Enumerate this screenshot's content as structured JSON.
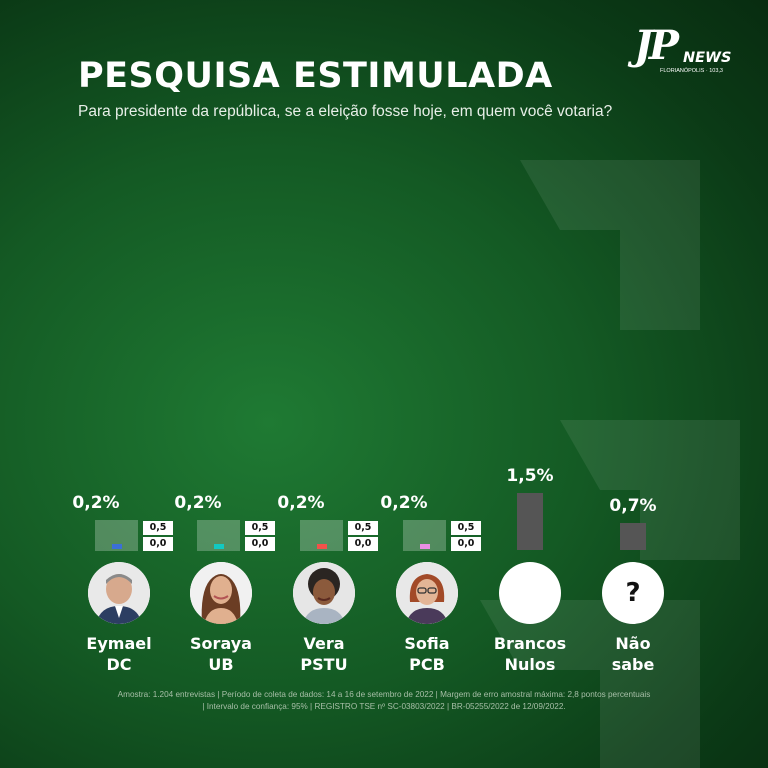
{
  "title": "PESQUISA ESTIMULADA",
  "subtitle": "Para presidente da república, se a eleição fosse hoje, em quem você votaria?",
  "logo": {
    "mark": "JP",
    "word": "NEWS",
    "city": "FLORIANÓPOLIS · 103,3"
  },
  "chart_data": {
    "type": "bar",
    "title": "PESQUISA ESTIMULADA",
    "categories": [
      "Eymael DC",
      "Soraya UB",
      "Vera PSTU",
      "Sofia PCB",
      "Brancos Nulos",
      "Não sabe"
    ],
    "values": [
      0.2,
      0.2,
      0.2,
      0.2,
      1.5,
      0.7
    ],
    "unit": "%",
    "value_labels": [
      "0,2%",
      "0,2%",
      "0,2%",
      "0,2%",
      "1,5%",
      "0,7%"
    ],
    "ranges": [
      {
        "max": "0,5",
        "min": "0,0"
      },
      {
        "max": "0,5",
        "min": "0,0"
      },
      {
        "max": "0,5",
        "min": "0,0"
      },
      {
        "max": "0,5",
        "min": "0,0"
      },
      null,
      null
    ],
    "colors": [
      "#3b6fd8",
      "#12c9c1",
      "#f2514a",
      "#e98fe6",
      "#555555",
      "#555555"
    ]
  },
  "candidates": [
    {
      "line1": "Eymael",
      "line2": "DC",
      "photo": "photo-eymael"
    },
    {
      "line1": "Soraya",
      "line2": "UB",
      "photo": "photo-soraya"
    },
    {
      "line1": "Vera",
      "line2": "PSTU",
      "photo": "photo-vera"
    },
    {
      "line1": "Sofia",
      "line2": "PCB",
      "photo": "photo-sofia"
    },
    {
      "line1": "Brancos",
      "line2": "Nulos",
      "photo": "blank-circle"
    },
    {
      "line1": "Não",
      "line2": "sabe",
      "photo": "question-icon",
      "symbol": "?"
    }
  ],
  "footer": {
    "line1": "Amostra: 1.204 entrevistas | Período de coleta de dados: 14 a 16 de setembro de 2022 | Margem de erro amostral máxima: 2,8 pontos percentuais",
    "line2": "| Intervalo de confiança: 95% | REGISTRO TSE nº SC-03803/2022 | BR-05255/2022 de 12/09/2022."
  }
}
